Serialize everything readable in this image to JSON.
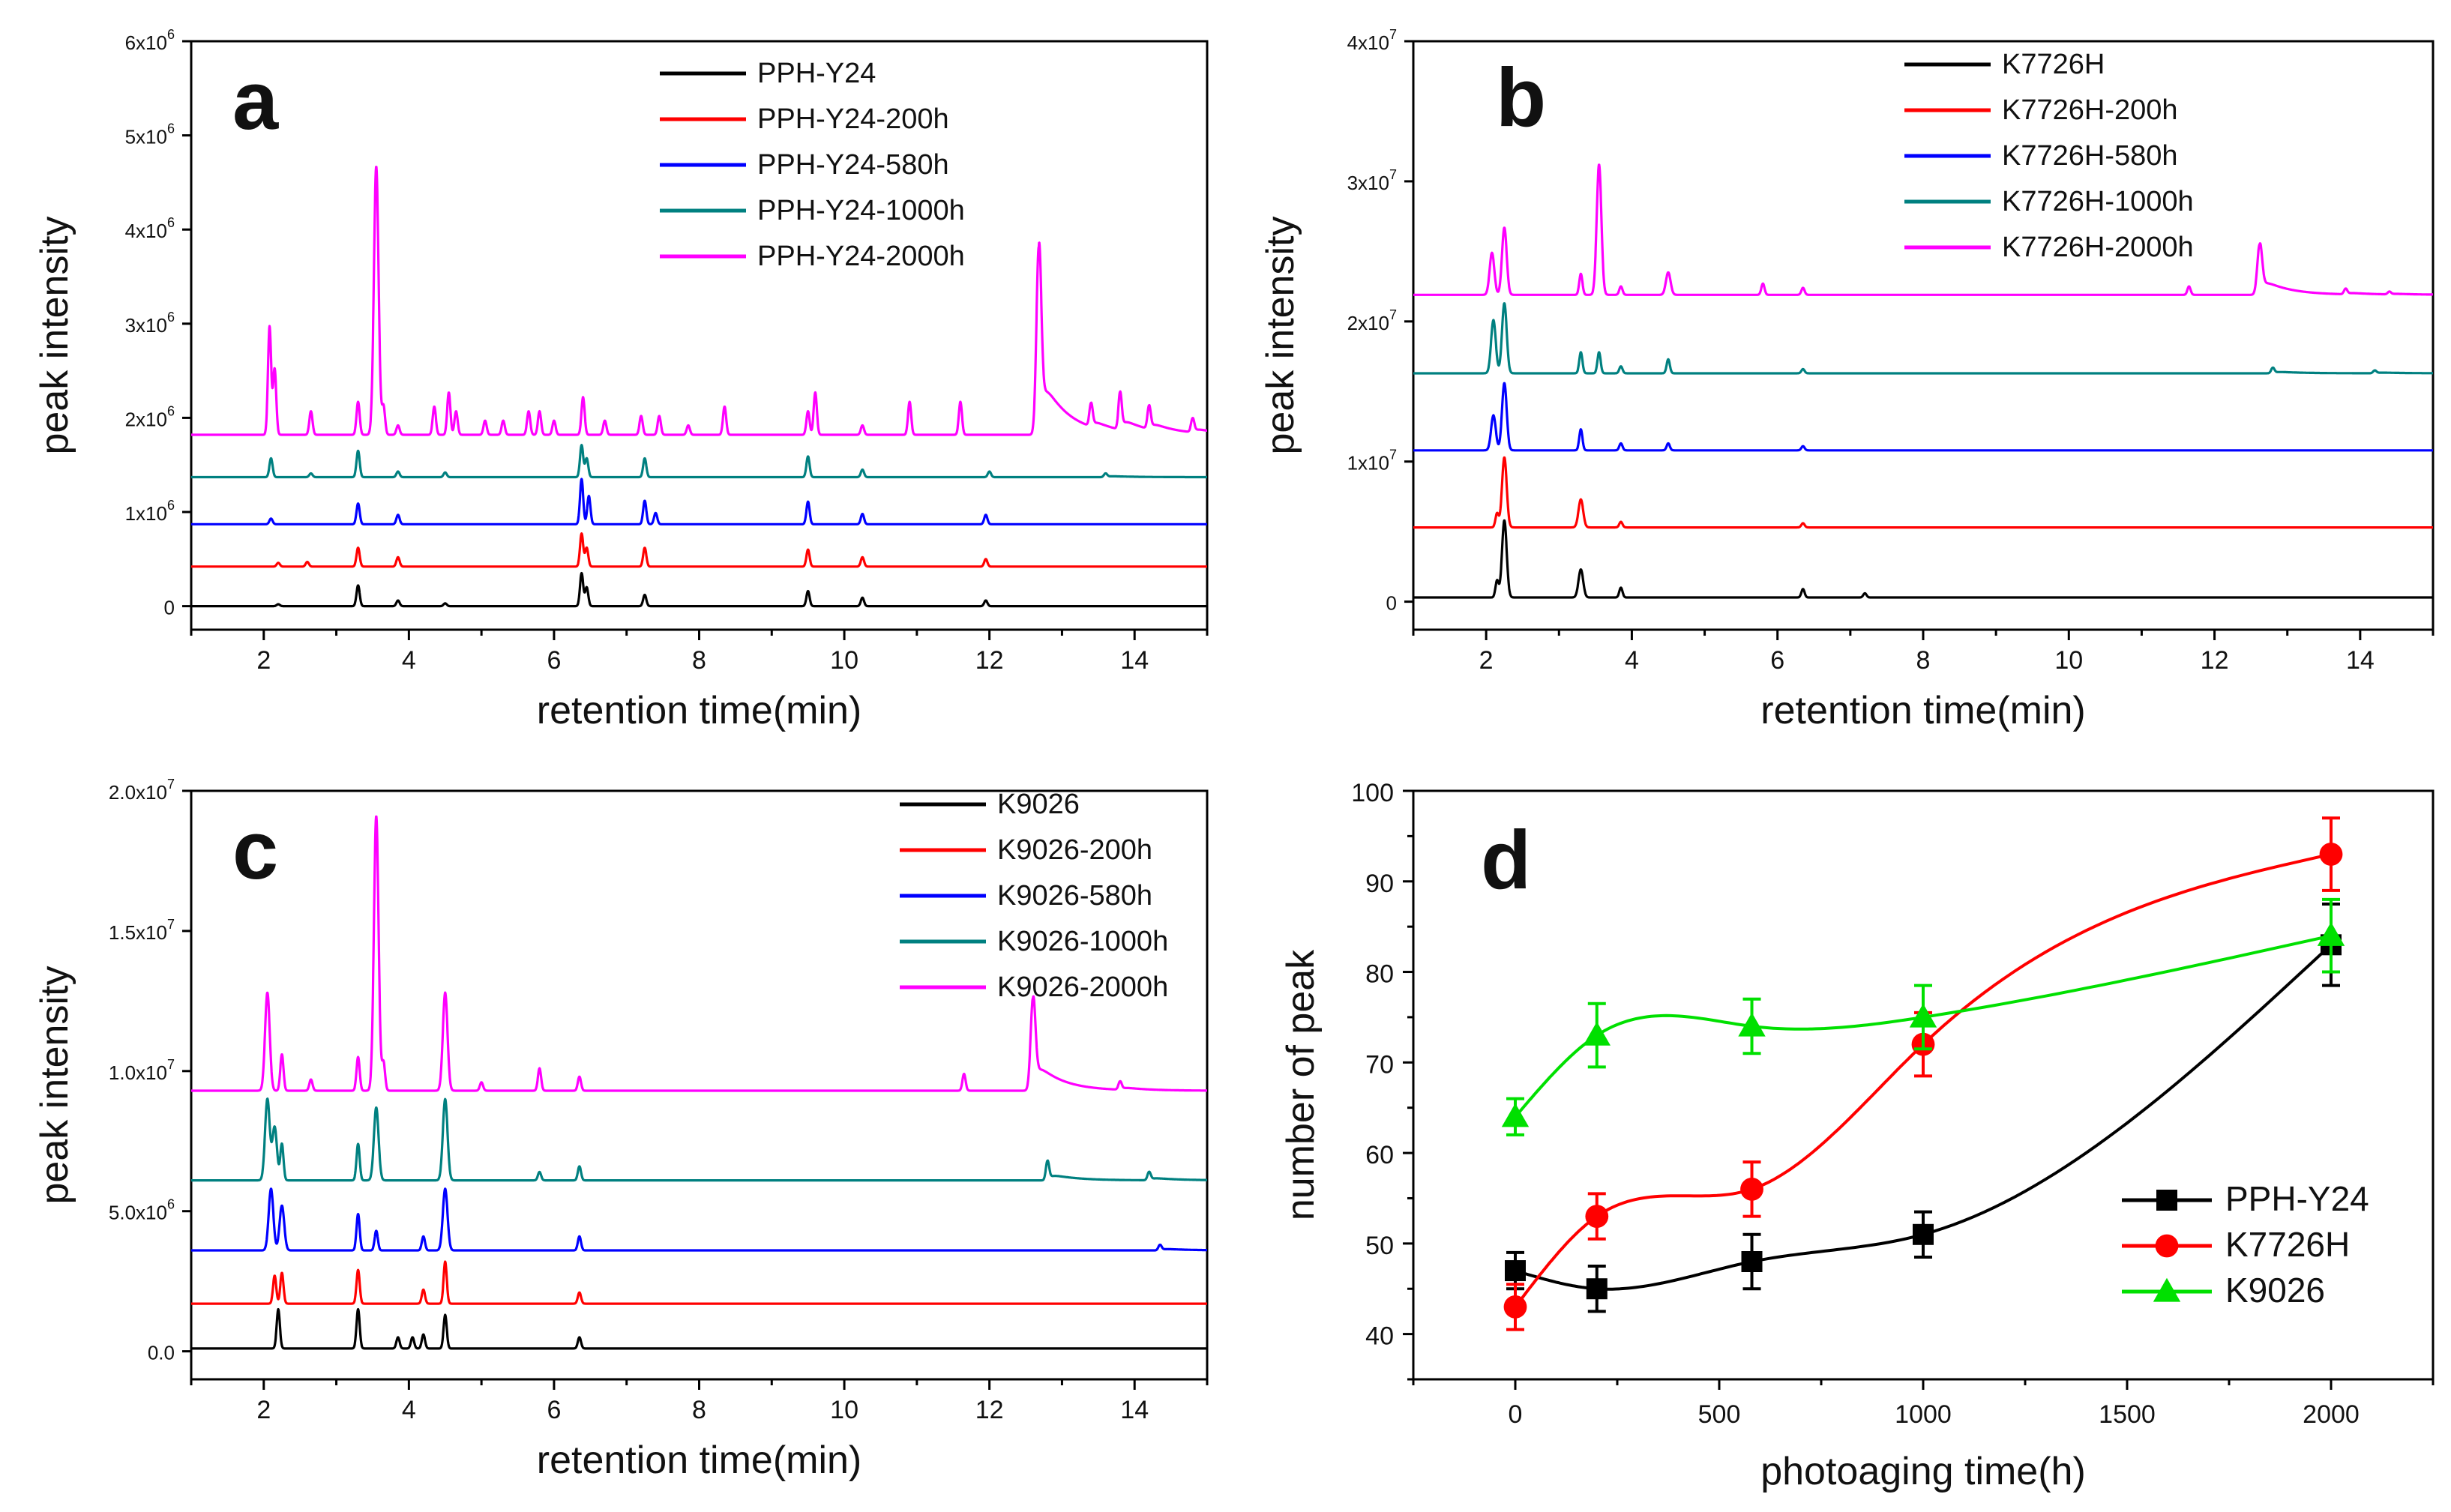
{
  "chart_data": [
    {
      "id": "a",
      "type": "line",
      "panel_label": "a",
      "xlabel": "retention time(min)",
      "ylabel": "peak intensity",
      "xlim": [
        1,
        15
      ],
      "xticks": [
        2,
        4,
        6,
        8,
        10,
        12,
        14
      ],
      "ylim": [
        -250000,
        6000000
      ],
      "yticks": [
        {
          "value": 0,
          "mant": "0",
          "exp": ""
        },
        {
          "value": 1000000,
          "mant": "1x10",
          "exp": "6"
        },
        {
          "value": 2000000,
          "mant": "2x10",
          "exp": "6"
        },
        {
          "value": 3000000,
          "mant": "3x10",
          "exp": "6"
        },
        {
          "value": 4000000,
          "mant": "4x10",
          "exp": "6"
        },
        {
          "value": 5000000,
          "mant": "5x10",
          "exp": "6"
        },
        {
          "value": 6000000,
          "mant": "6x10",
          "exp": "6"
        }
      ],
      "legend_position": "top-right",
      "series": [
        {
          "name": "PPH-Y24",
          "color": "#000000",
          "baseline": 0,
          "peaks": [
            [
              2.2,
              20000
            ],
            [
              3.3,
              220000
            ],
            [
              3.85,
              60000
            ],
            [
              4.5,
              30000
            ],
            [
              6.38,
              350000
            ],
            [
              6.45,
              200000
            ],
            [
              7.25,
              120000
            ],
            [
              9.5,
              160000
            ],
            [
              10.25,
              90000
            ],
            [
              11.95,
              60000
            ]
          ]
        },
        {
          "name": "PPH-Y24-200h",
          "color": "#ff0000",
          "baseline": 420000,
          "peaks": [
            [
              2.2,
              40000
            ],
            [
              2.6,
              50000
            ],
            [
              3.3,
              200000
            ],
            [
              3.85,
              100000
            ],
            [
              6.38,
              350000
            ],
            [
              6.45,
              200000
            ],
            [
              7.25,
              200000
            ],
            [
              9.5,
              180000
            ],
            [
              10.25,
              100000
            ],
            [
              11.95,
              80000
            ]
          ]
        },
        {
          "name": "PPH-Y24-580h",
          "color": "#0000ff",
          "baseline": 870000,
          "peaks": [
            [
              2.1,
              60000
            ],
            [
              3.3,
              220000
            ],
            [
              3.85,
              100000
            ],
            [
              6.38,
              480000
            ],
            [
              6.48,
              300000
            ],
            [
              7.25,
              250000
            ],
            [
              7.4,
              120000
            ],
            [
              9.5,
              240000
            ],
            [
              10.25,
              110000
            ],
            [
              11.95,
              100000
            ]
          ]
        },
        {
          "name": "PPH-Y24-1000h",
          "color": "#008080",
          "baseline": 1370000,
          "peaks": [
            [
              2.1,
              200000
            ],
            [
              2.65,
              40000
            ],
            [
              3.3,
              280000
            ],
            [
              3.85,
              60000
            ],
            [
              4.5,
              50000
            ],
            [
              6.38,
              340000
            ],
            [
              6.45,
              200000
            ],
            [
              7.25,
              200000
            ],
            [
              9.5,
              220000
            ],
            [
              10.25,
              80000
            ],
            [
              12.0,
              60000
            ],
            [
              13.6,
              40000
            ]
          ]
        },
        {
          "name": "PPH-Y24-2000h",
          "color": "#ff00ff",
          "baseline": 1820000,
          "peaks": [
            [
              2.08,
              1150000
            ],
            [
              2.15,
              700000
            ],
            [
              2.65,
              250000
            ],
            [
              3.3,
              350000
            ],
            [
              3.55,
              2850000
            ],
            [
              3.65,
              300000
            ],
            [
              3.85,
              100000
            ],
            [
              4.35,
              300000
            ],
            [
              4.55,
              450000
            ],
            [
              4.65,
              250000
            ],
            [
              5.05,
              150000
            ],
            [
              5.3,
              150000
            ],
            [
              5.65,
              250000
            ],
            [
              5.8,
              250000
            ],
            [
              6.0,
              150000
            ],
            [
              6.4,
              400000
            ],
            [
              6.7,
              150000
            ],
            [
              7.2,
              200000
            ],
            [
              7.45,
              200000
            ],
            [
              7.85,
              100000
            ],
            [
              8.35,
              300000
            ],
            [
              9.5,
              250000
            ],
            [
              9.6,
              450000
            ],
            [
              10.25,
              100000
            ],
            [
              10.9,
              350000
            ],
            [
              11.6,
              350000
            ],
            [
              12.68,
              2000000
            ],
            [
              13.4,
              250000
            ],
            [
              13.8,
              400000
            ],
            [
              14.2,
              250000
            ],
            [
              14.8,
              150000
            ]
          ]
        }
      ]
    },
    {
      "id": "b",
      "type": "line",
      "panel_label": "b",
      "xlabel": "retention time(min)",
      "ylabel": "peak intensity",
      "xlim": [
        1,
        15
      ],
      "xticks": [
        2,
        4,
        6,
        8,
        10,
        12,
        14
      ],
      "ylim": [
        -2000000,
        40000000
      ],
      "yticks": [
        {
          "value": 0,
          "mant": "0",
          "exp": ""
        },
        {
          "value": 10000000,
          "mant": "1x10",
          "exp": "7"
        },
        {
          "value": 20000000,
          "mant": "2x10",
          "exp": "7"
        },
        {
          "value": 30000000,
          "mant": "3x10",
          "exp": "7"
        },
        {
          "value": 40000000,
          "mant": "4x10",
          "exp": "7"
        }
      ],
      "legend_position": "top-right",
      "series": [
        {
          "name": "K7726H",
          "color": "#000000",
          "baseline": 300000,
          "peaks": [
            [
              2.15,
              1200000
            ],
            [
              2.25,
              5500000
            ],
            [
              3.3,
              2000000
            ],
            [
              3.85,
              700000
            ],
            [
              6.35,
              600000
            ],
            [
              7.2,
              300000
            ]
          ]
        },
        {
          "name": "K7726H-200h",
          "color": "#ff0000",
          "baseline": 5300000,
          "peaks": [
            [
              2.15,
              1000000
            ],
            [
              2.25,
              5000000
            ],
            [
              3.3,
              2000000
            ],
            [
              3.85,
              400000
            ],
            [
              6.35,
              300000
            ]
          ]
        },
        {
          "name": "K7726H-580h",
          "color": "#0000ff",
          "baseline": 10800000,
          "peaks": [
            [
              2.1,
              2500000
            ],
            [
              2.25,
              4800000
            ],
            [
              3.3,
              1500000
            ],
            [
              3.85,
              500000
            ],
            [
              4.5,
              500000
            ],
            [
              6.35,
              300000
            ]
          ]
        },
        {
          "name": "K7726H-1000h",
          "color": "#008080",
          "baseline": 16300000,
          "peaks": [
            [
              2.1,
              3800000
            ],
            [
              2.25,
              5000000
            ],
            [
              3.3,
              1500000
            ],
            [
              3.55,
              1500000
            ],
            [
              3.85,
              500000
            ],
            [
              4.5,
              1000000
            ],
            [
              6.35,
              300000
            ],
            [
              12.8,
              400000
            ],
            [
              14.2,
              200000
            ]
          ]
        },
        {
          "name": "K7726H-2000h",
          "color": "#ff00ff",
          "baseline": 21900000,
          "peaks": [
            [
              2.08,
              3000000
            ],
            [
              2.25,
              4800000
            ],
            [
              3.3,
              1500000
            ],
            [
              3.55,
              9300000
            ],
            [
              3.85,
              600000
            ],
            [
              4.5,
              1600000
            ],
            [
              5.8,
              800000
            ],
            [
              6.35,
              500000
            ],
            [
              11.65,
              600000
            ],
            [
              12.62,
              3600000
            ],
            [
              13.8,
              400000
            ],
            [
              14.4,
              200000
            ]
          ]
        }
      ]
    },
    {
      "id": "c",
      "type": "line",
      "panel_label": "c",
      "xlabel": "retention time(min)",
      "ylabel": "peak intensity",
      "xlim": [
        1,
        15
      ],
      "xticks": [
        2,
        4,
        6,
        8,
        10,
        12,
        14
      ],
      "ylim": [
        -1000000,
        20000000
      ],
      "yticks": [
        {
          "value": 0,
          "mant": "0.0",
          "exp": ""
        },
        {
          "value": 5000000,
          "mant": "5.0x10",
          "exp": "6"
        },
        {
          "value": 10000000,
          "mant": "1.0x10",
          "exp": "7"
        },
        {
          "value": 15000000,
          "mant": "1.5x10",
          "exp": "7"
        },
        {
          "value": 20000000,
          "mant": "2.0x10",
          "exp": "7"
        }
      ],
      "legend_position": "top-right",
      "series": [
        {
          "name": "K9026",
          "color": "#000000",
          "baseline": 100000,
          "peaks": [
            [
              2.2,
              1400000
            ],
            [
              3.3,
              1400000
            ],
            [
              3.85,
              400000
            ],
            [
              4.05,
              400000
            ],
            [
              4.2,
              500000
            ],
            [
              4.5,
              1200000
            ],
            [
              6.35,
              400000
            ]
          ]
        },
        {
          "name": "K9026-200h",
          "color": "#ff0000",
          "baseline": 1700000,
          "peaks": [
            [
              2.15,
              1000000
            ],
            [
              2.25,
              1100000
            ],
            [
              3.3,
              1200000
            ],
            [
              4.2,
              500000
            ],
            [
              4.5,
              1500000
            ],
            [
              6.35,
              400000
            ]
          ]
        },
        {
          "name": "K9026-580h",
          "color": "#0000ff",
          "baseline": 3600000,
          "peaks": [
            [
              2.1,
              2200000
            ],
            [
              2.25,
              1600000
            ],
            [
              3.3,
              1300000
            ],
            [
              3.55,
              700000
            ],
            [
              4.2,
              500000
            ],
            [
              4.5,
              2200000
            ],
            [
              6.35,
              500000
            ],
            [
              14.35,
              200000
            ]
          ]
        },
        {
          "name": "K9026-1000h",
          "color": "#008080",
          "baseline": 6100000,
          "peaks": [
            [
              2.05,
              2900000
            ],
            [
              2.15,
              1900000
            ],
            [
              2.25,
              1300000
            ],
            [
              3.3,
              1300000
            ],
            [
              3.55,
              2600000
            ],
            [
              4.5,
              2900000
            ],
            [
              5.8,
              300000
            ],
            [
              6.35,
              500000
            ],
            [
              12.8,
              700000
            ],
            [
              14.2,
              300000
            ]
          ]
        },
        {
          "name": "K9026-2000h",
          "color": "#ff00ff",
          "baseline": 9300000,
          "peaks": [
            [
              2.05,
              3500000
            ],
            [
              2.25,
              1300000
            ],
            [
              2.65,
              400000
            ],
            [
              3.3,
              1200000
            ],
            [
              3.55,
              9800000
            ],
            [
              3.65,
              1000000
            ],
            [
              4.5,
              3500000
            ],
            [
              5.0,
              300000
            ],
            [
              5.8,
              800000
            ],
            [
              6.35,
              500000
            ],
            [
              11.65,
              600000
            ],
            [
              12.6,
              3300000
            ],
            [
              13.8,
              300000
            ]
          ]
        }
      ]
    },
    {
      "id": "d",
      "type": "scatter",
      "panel_label": "d",
      "xlabel": "photoaging time(h)",
      "ylabel": "number of peak",
      "xlim": [
        -250,
        2250
      ],
      "xticks": [
        0,
        500,
        1000,
        1500,
        2000
      ],
      "ylim": [
        35,
        100
      ],
      "yticks": [
        40,
        50,
        60,
        70,
        80,
        90,
        100
      ],
      "legend_position": "bottom-right",
      "x": [
        0,
        200,
        580,
        1000,
        2000
      ],
      "series": [
        {
          "name": "PPH-Y24",
          "color": "#000000",
          "marker": "square",
          "values": [
            47,
            45,
            48,
            51,
            83
          ],
          "errors": [
            2,
            2.5,
            3,
            2.5,
            4.5
          ]
        },
        {
          "name": "K7726H",
          "color": "#ff0000",
          "marker": "circle",
          "values": [
            43,
            53,
            56,
            72,
            93
          ],
          "errors": [
            2.5,
            2.5,
            3,
            3.5,
            4
          ]
        },
        {
          "name": "K9026",
          "color": "#00e000",
          "marker": "triangle",
          "values": [
            64,
            73,
            74,
            75,
            84
          ],
          "errors": [
            2,
            3.5,
            3,
            3.5,
            4
          ]
        }
      ]
    }
  ]
}
